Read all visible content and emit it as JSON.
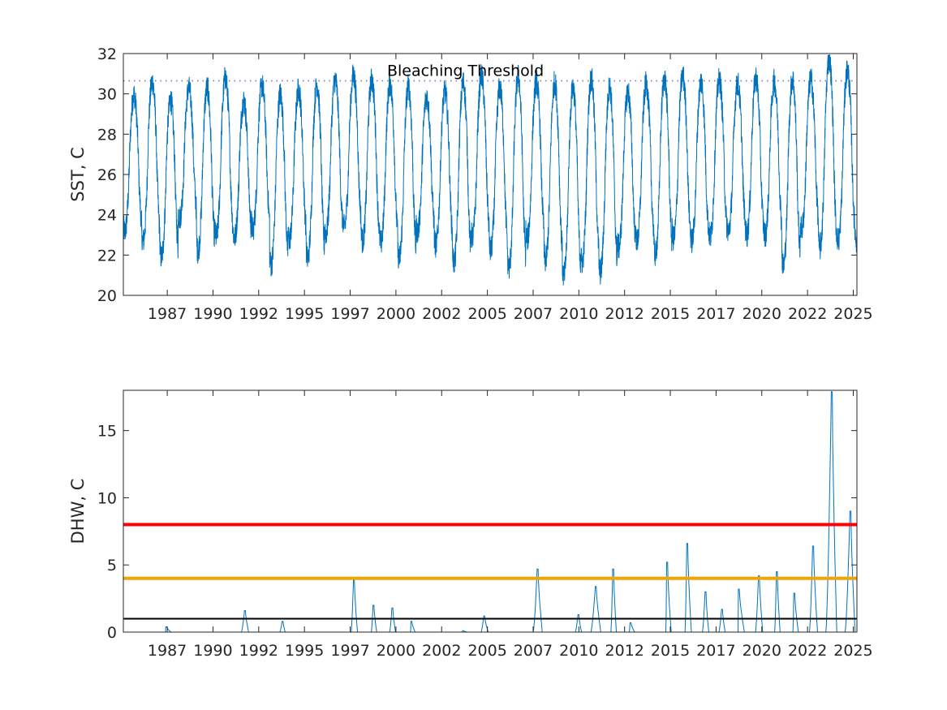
{
  "chart_data": [
    {
      "type": "line",
      "ylabel": "SST, C",
      "xlim": [
        1985.0,
        2025.1
      ],
      "ylim": [
        20,
        32
      ],
      "yticks": [
        20,
        22,
        24,
        26,
        28,
        30,
        32
      ],
      "xtick_labels": [
        "1987",
        "1990",
        "1992",
        "1995",
        "1997",
        "2000",
        "2002",
        "2005",
        "2007",
        "2010",
        "2012",
        "2015",
        "2017",
        "2020",
        "2022",
        "2025"
      ],
      "xtick_positions": [
        1987.4,
        1989.9,
        1992.4,
        1994.9,
        1997.4,
        1999.9,
        2002.4,
        2004.9,
        2007.4,
        2009.9,
        2012.4,
        2014.9,
        2017.4,
        2019.9,
        2022.4,
        2024.9
      ],
      "grid": false,
      "series": [
        {
          "color": "#0072BD",
          "style": "line",
          "seasonal_model": {
            "period_years": 1,
            "peak_phase": 0.58,
            "samples_per_year": 120,
            "note_values": "yearly summer maximum and winter minimum (C)"
          },
          "annual_max": [
            {
              "year": 1985,
              "max": 30.2
            },
            {
              "year": 1986,
              "max": 30.9
            },
            {
              "year": 1987,
              "max": 30.0
            },
            {
              "year": 1988,
              "max": 30.5
            },
            {
              "year": 1989,
              "max": 30.6
            },
            {
              "year": 1990,
              "max": 31.1
            },
            {
              "year": 1991,
              "max": 29.9
            },
            {
              "year": 1992,
              "max": 30.7
            },
            {
              "year": 1993,
              "max": 30.3
            },
            {
              "year": 1994,
              "max": 30.5
            },
            {
              "year": 1995,
              "max": 30.8
            },
            {
              "year": 1996,
              "max": 31.0
            },
            {
              "year": 1997,
              "max": 31.2
            },
            {
              "year": 1998,
              "max": 31.0
            },
            {
              "year": 1999,
              "max": 30.8
            },
            {
              "year": 2000,
              "max": 30.7
            },
            {
              "year": 2001,
              "max": 30.1
            },
            {
              "year": 2002,
              "max": 30.4
            },
            {
              "year": 2003,
              "max": 30.9
            },
            {
              "year": 2004,
              "max": 31.2
            },
            {
              "year": 2005,
              "max": 30.6
            },
            {
              "year": 2006,
              "max": 31.2
            },
            {
              "year": 2007,
              "max": 30.9
            },
            {
              "year": 2008,
              "max": 30.9
            },
            {
              "year": 2009,
              "max": 30.7
            },
            {
              "year": 2010,
              "max": 31.1
            },
            {
              "year": 2011,
              "max": 30.7
            },
            {
              "year": 2012,
              "max": 30.4
            },
            {
              "year": 2013,
              "max": 30.8
            },
            {
              "year": 2014,
              "max": 31.1
            },
            {
              "year": 2015,
              "max": 31.2
            },
            {
              "year": 2016,
              "max": 30.9
            },
            {
              "year": 2017,
              "max": 31.0
            },
            {
              "year": 2018,
              "max": 30.8
            },
            {
              "year": 2019,
              "max": 31.1
            },
            {
              "year": 2020,
              "max": 30.9
            },
            {
              "year": 2021,
              "max": 31.1
            },
            {
              "year": 2022,
              "max": 31.0
            },
            {
              "year": 2023,
              "max": 32.1
            },
            {
              "year": 2024,
              "max": 31.5
            }
          ],
          "annual_min": [
            {
              "year": 1985,
              "min": 22.9
            },
            {
              "year": 1986,
              "min": 22.4
            },
            {
              "year": 1987,
              "min": 21.6
            },
            {
              "year": 1988,
              "min": 23.6
            },
            {
              "year": 1989,
              "min": 21.9
            },
            {
              "year": 1990,
              "min": 22.6
            },
            {
              "year": 1991,
              "min": 22.6
            },
            {
              "year": 1992,
              "min": 23.0
            },
            {
              "year": 1993,
              "min": 21.2
            },
            {
              "year": 1994,
              "min": 22.5
            },
            {
              "year": 1995,
              "min": 21.5
            },
            {
              "year": 1996,
              "min": 22.8
            },
            {
              "year": 1997,
              "min": 23.1
            },
            {
              "year": 1998,
              "min": 22.4
            },
            {
              "year": 1999,
              "min": 22.3
            },
            {
              "year": 2000,
              "min": 21.5
            },
            {
              "year": 2001,
              "min": 22.9
            },
            {
              "year": 2002,
              "min": 22.2
            },
            {
              "year": 2003,
              "min": 21.3
            },
            {
              "year": 2004,
              "min": 22.6
            },
            {
              "year": 2005,
              "min": 21.9
            },
            {
              "year": 2006,
              "min": 21.0
            },
            {
              "year": 2007,
              "min": 22.5
            },
            {
              "year": 2008,
              "min": 21.4
            },
            {
              "year": 2009,
              "min": 20.6
            },
            {
              "year": 2010,
              "min": 21.3
            },
            {
              "year": 2011,
              "min": 20.8
            },
            {
              "year": 2012,
              "min": 22.1
            },
            {
              "year": 2013,
              "min": 22.4
            },
            {
              "year": 2014,
              "min": 21.7
            },
            {
              "year": 2015,
              "min": 22.5
            },
            {
              "year": 2016,
              "min": 22.4
            },
            {
              "year": 2017,
              "min": 22.6
            },
            {
              "year": 2018,
              "min": 22.9
            },
            {
              "year": 2019,
              "min": 22.7
            },
            {
              "year": 2020,
              "min": 22.7
            },
            {
              "year": 2021,
              "min": 21.1
            },
            {
              "year": 2022,
              "min": 23.0
            },
            {
              "year": 2023,
              "min": 22.0
            },
            {
              "year": 2024,
              "min": 22.4
            }
          ]
        },
        {
          "name": "Bleaching Threshold",
          "color": "#7E6FC8",
          "style": "dotted",
          "x": [
            1985.0,
            2025.1
          ],
          "y": [
            30.65,
            30.65
          ]
        }
      ],
      "annotations": [
        {
          "text": "Bleaching Threshold",
          "x": 2003.7,
          "y": 30.9
        }
      ]
    },
    {
      "type": "line",
      "ylabel": "DHW, C",
      "xlim": [
        1985.0,
        2025.1
      ],
      "ylim": [
        0,
        18
      ],
      "yticks": [
        0,
        5,
        10,
        15
      ],
      "xtick_labels": [
        "1987",
        "1990",
        "1992",
        "1995",
        "1997",
        "2000",
        "2002",
        "2005",
        "2007",
        "2010",
        "2012",
        "2015",
        "2017",
        "2020",
        "2022",
        "2025"
      ],
      "xtick_positions": [
        1987.4,
        1989.9,
        1992.4,
        1994.9,
        1997.4,
        1999.9,
        2002.4,
        2004.9,
        2007.4,
        2009.9,
        2012.4,
        2014.9,
        2017.4,
        2019.9,
        2022.4,
        2024.9
      ],
      "grid": false,
      "reference_lines": [
        {
          "y": 8,
          "color": "#FF0000"
        },
        {
          "y": 4,
          "color": "#F5A300"
        },
        {
          "y": 1,
          "color": "#000000"
        }
      ],
      "series": [
        {
          "color": "#0072BD",
          "style": "line",
          "events": [
            {
              "start": 1987.3,
              "peak": 1987.32,
              "end": 1987.6,
              "value": 0.4
            },
            {
              "start": 1991.45,
              "peak": 1991.62,
              "end": 1991.85,
              "value": 1.6
            },
            {
              "start": 1993.55,
              "peak": 1993.68,
              "end": 1993.85,
              "value": 0.8
            },
            {
              "start": 1997.45,
              "peak": 1997.58,
              "end": 1997.8,
              "value": 3.9
            },
            {
              "start": 1998.55,
              "peak": 1998.65,
              "end": 1998.85,
              "value": 2.0
            },
            {
              "start": 1999.55,
              "peak": 1999.68,
              "end": 1999.88,
              "value": 1.8
            },
            {
              "start": 2000.7,
              "peak": 2000.72,
              "end": 2000.95,
              "value": 0.8
            },
            {
              "start": 2003.5,
              "peak": 2003.55,
              "end": 2003.8,
              "value": 0.1
            },
            {
              "start": 2004.55,
              "peak": 2004.7,
              "end": 2004.95,
              "value": 1.2
            },
            {
              "start": 2007.4,
              "peak": 2007.62,
              "end": 2007.9,
              "value": 4.7
            },
            {
              "start": 2009.7,
              "peak": 2009.85,
              "end": 2010.05,
              "value": 1.3
            },
            {
              "start": 2010.55,
              "peak": 2010.8,
              "end": 2011.1,
              "value": 3.4
            },
            {
              "start": 2011.65,
              "peak": 2011.75,
              "end": 2011.95,
              "value": 4.7
            },
            {
              "start": 2012.65,
              "peak": 2012.7,
              "end": 2012.95,
              "value": 0.7
            },
            {
              "start": 2014.65,
              "peak": 2014.7,
              "end": 2014.95,
              "value": 5.2
            },
            {
              "start": 2015.7,
              "peak": 2015.8,
              "end": 2016.05,
              "value": 6.6
            },
            {
              "start": 2016.65,
              "peak": 2016.8,
              "end": 2017.0,
              "value": 3.0
            },
            {
              "start": 2017.55,
              "peak": 2017.7,
              "end": 2017.9,
              "value": 1.7
            },
            {
              "start": 2018.6,
              "peak": 2018.62,
              "end": 2018.95,
              "value": 3.2
            },
            {
              "start": 2019.55,
              "peak": 2019.72,
              "end": 2019.95,
              "value": 4.2
            },
            {
              "start": 2020.6,
              "peak": 2020.7,
              "end": 2020.9,
              "value": 4.5
            },
            {
              "start": 2021.6,
              "peak": 2021.65,
              "end": 2021.9,
              "value": 2.9
            },
            {
              "start": 2022.5,
              "peak": 2022.68,
              "end": 2022.95,
              "value": 6.4
            },
            {
              "start": 2023.4,
              "peak": 2023.7,
              "end": 2024.0,
              "value": 17.9
            },
            {
              "start": 2024.45,
              "peak": 2024.72,
              "end": 2025.0,
              "value": 9.0
            }
          ]
        }
      ]
    }
  ]
}
